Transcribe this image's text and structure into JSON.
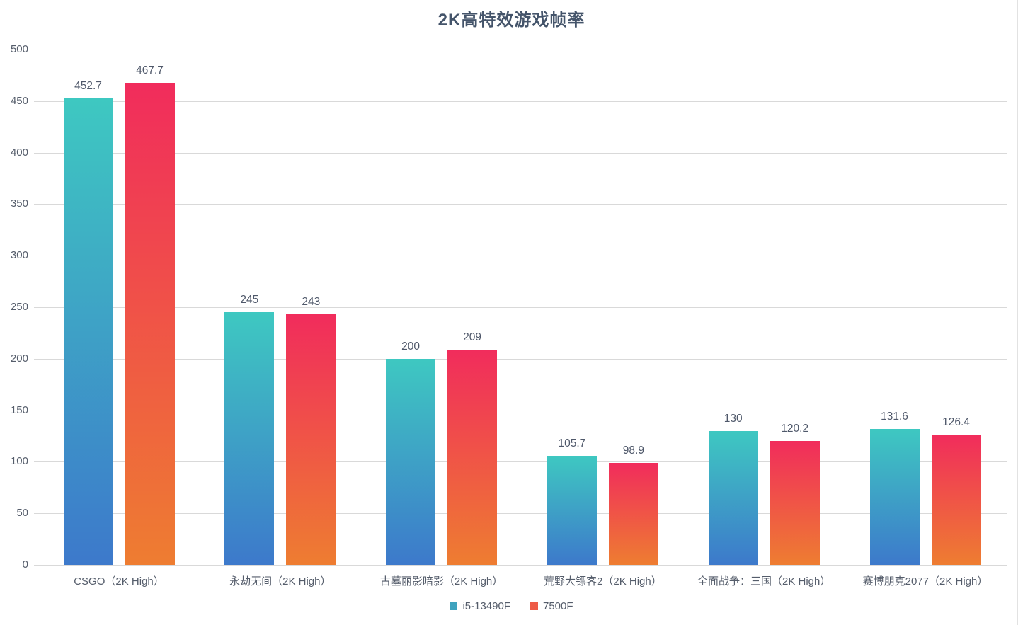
{
  "chart_data": {
    "type": "bar",
    "title": "2K高特效游戏帧率",
    "categories": [
      "CSGO（2K High）",
      "永劫无间（2K High）",
      "古墓丽影暗影（2K High）",
      "荒野大镖客2（2K High）",
      "全面战争：三国（2K High）",
      "赛博朋克2077（2K High）"
    ],
    "series": [
      {
        "name": "i5-13490F",
        "values": [
          452.7,
          245,
          200,
          105.7,
          130,
          131.6
        ],
        "labels": [
          "452.7",
          "245",
          "200",
          "105.7",
          "130",
          "131.6"
        ],
        "gradient_top": "#3EC8C1",
        "gradient_bottom": "#3D79CB",
        "legend_color": "#3FA3BE"
      },
      {
        "name": "7500F",
        "values": [
          467.7,
          243,
          209,
          98.9,
          120.2,
          126.4
        ],
        "labels": [
          "467.7",
          "243",
          "209",
          "98.9",
          "120.2",
          "126.4"
        ],
        "gradient_top": "#F12C5C",
        "gradient_bottom": "#EE7D31",
        "legend_color": "#EE5B47"
      }
    ],
    "y_axis": {
      "min": 0,
      "max": 500,
      "step": 50,
      "ticks": [
        "0",
        "50",
        "100",
        "150",
        "200",
        "250",
        "300",
        "350",
        "400",
        "450",
        "500"
      ]
    },
    "grid": true,
    "legend_position": "bottom",
    "colors": {
      "title": "#44546A",
      "axis_text": "#555D6B",
      "data_label_text": "#4F586A",
      "gridline": "#D9D9D9",
      "window_border": "#E2E2E2",
      "background": "#FFFFFF"
    }
  }
}
